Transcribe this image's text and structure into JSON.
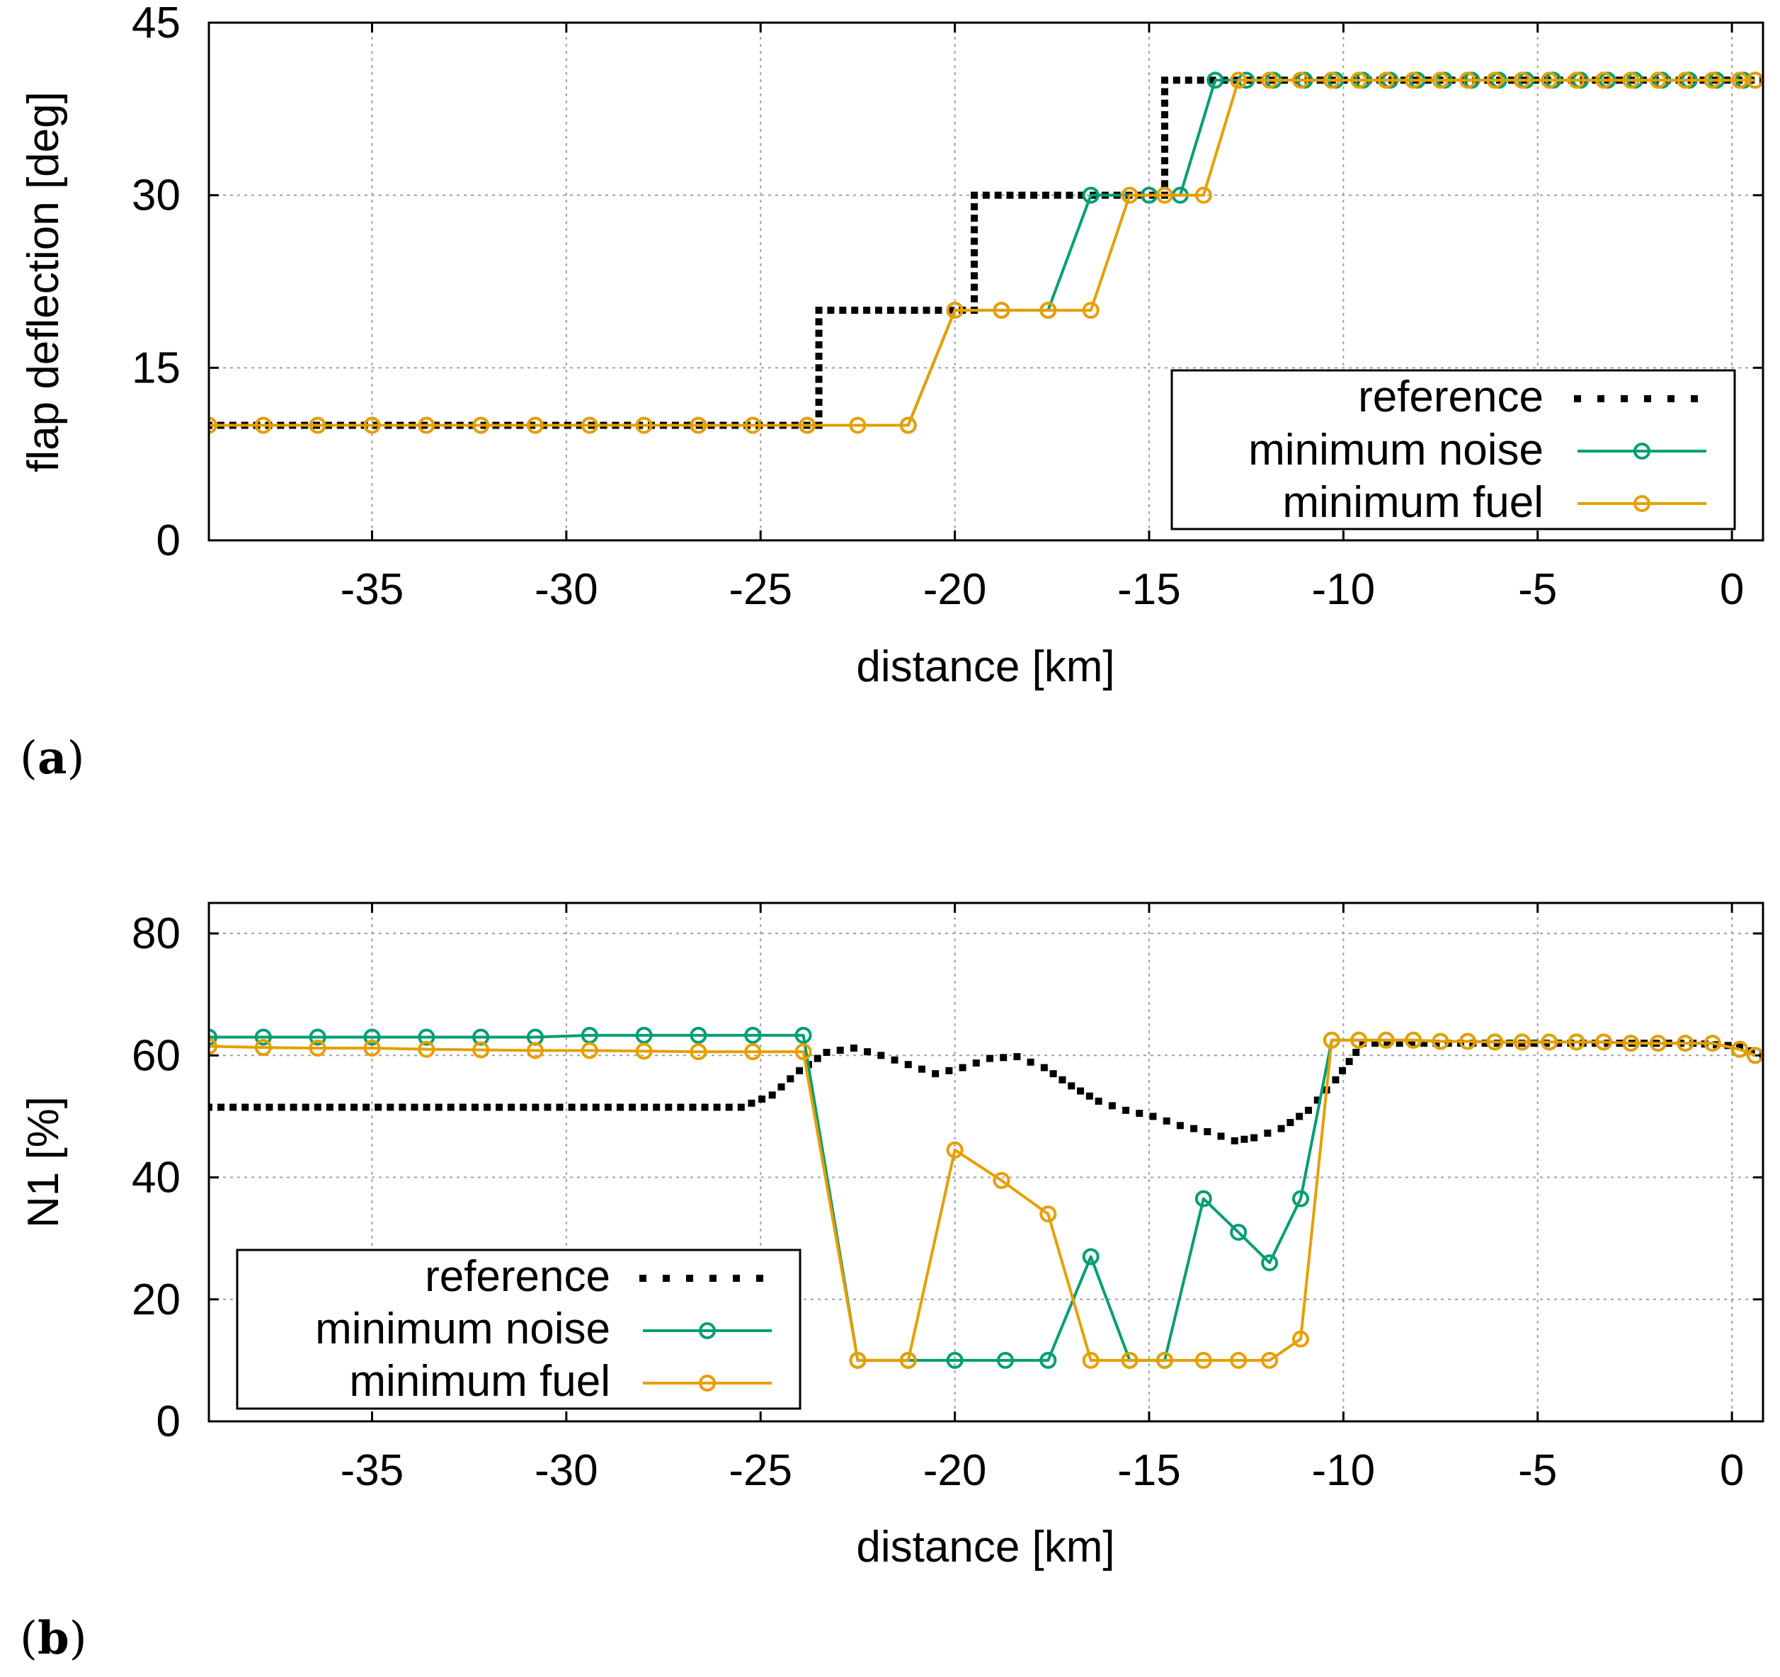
{
  "colors": {
    "reference": "#000000",
    "min_noise": "#009e73",
    "min_fuel": "#e69f00"
  },
  "chart_data": [
    {
      "type": "line",
      "panel_label": "a",
      "title": "",
      "xlabel": "distance [km]",
      "ylabel": "flap deflection [deg]",
      "xlim": [
        -39.2,
        0.8
      ],
      "ylim": [
        0,
        45
      ],
      "xticks": [
        -35,
        -30,
        -25,
        -20,
        -15,
        -10,
        -5,
        0
      ],
      "yticks": [
        0,
        15,
        30,
        45
      ],
      "grid": true,
      "legend_position": "bottom-right",
      "series": [
        {
          "name": "reference",
          "style": "dots",
          "color": "#000000",
          "x": [
            -39.2,
            -23.5,
            -23.5,
            -19.5,
            -19.5,
            -14.6,
            -14.6,
            0.8
          ],
          "y": [
            10,
            10,
            20,
            20,
            30,
            30,
            40,
            40
          ]
        },
        {
          "name": "minimum noise",
          "style": "line-markers",
          "color": "#009e73",
          "x": [
            -39.2,
            -37.8,
            -36.4,
            -35.0,
            -33.6,
            -32.2,
            -30.8,
            -29.4,
            -28.0,
            -26.6,
            -25.2,
            -23.8,
            -21.2,
            -20.0,
            -18.8,
            -17.6,
            -16.5,
            -15.0,
            -14.2,
            -13.3,
            -12.5,
            -11.8,
            -11.0,
            -10.2,
            -9.5,
            -8.8,
            -8.1,
            -7.4,
            -6.7,
            -6.0,
            -5.3,
            -4.6,
            -3.9,
            -3.2,
            -2.5,
            -1.8,
            -1.1,
            -0.4,
            0.3,
            0.6
          ],
          "y": [
            10,
            10,
            10,
            10,
            10,
            10,
            10,
            10,
            10,
            10,
            10,
            10,
            10,
            20,
            20,
            20,
            30,
            30,
            30,
            40,
            40,
            40,
            40,
            40,
            40,
            40,
            40,
            40,
            40,
            40,
            40,
            40,
            40,
            40,
            40,
            40,
            40,
            40,
            40,
            40
          ]
        },
        {
          "name": "minimum fuel",
          "style": "line-markers",
          "color": "#e69f00",
          "x": [
            -39.2,
            -37.8,
            -36.4,
            -35.0,
            -33.6,
            -32.2,
            -30.8,
            -29.4,
            -28.0,
            -26.6,
            -25.2,
            -23.8,
            -22.5,
            -21.2,
            -20.0,
            -18.8,
            -17.6,
            -16.5,
            -15.5,
            -14.6,
            -13.6,
            -12.7,
            -11.9,
            -11.1,
            -10.3,
            -9.6,
            -8.9,
            -8.2,
            -7.5,
            -6.8,
            -6.1,
            -5.4,
            -4.7,
            -4.0,
            -3.3,
            -2.6,
            -1.9,
            -1.2,
            -0.5,
            0.2,
            0.6
          ],
          "y": [
            10,
            10,
            10,
            10,
            10,
            10,
            10,
            10,
            10,
            10,
            10,
            10,
            10,
            10,
            20,
            20,
            20,
            20,
            30,
            30,
            30,
            40,
            40,
            40,
            40,
            40,
            40,
            40,
            40,
            40,
            40,
            40,
            40,
            40,
            40,
            40,
            40,
            40,
            40,
            40,
            40
          ]
        }
      ]
    },
    {
      "type": "line",
      "panel_label": "b",
      "title": "",
      "xlabel": "distance [km]",
      "ylabel": "N1 [%]",
      "xlim": [
        -39.2,
        0.8
      ],
      "ylim": [
        0,
        85
      ],
      "xticks": [
        -35,
        -30,
        -25,
        -20,
        -15,
        -10,
        -5,
        0
      ],
      "yticks": [
        0,
        20,
        40,
        60,
        80
      ],
      "grid": true,
      "legend_position": "bottom-left",
      "series": [
        {
          "name": "reference",
          "style": "dots",
          "color": "#000000",
          "x": [
            -39.2,
            -25.5,
            -24.7,
            -24.0,
            -23.3,
            -22.6,
            -21.9,
            -21.2,
            -20.5,
            -19.8,
            -19.1,
            -18.4,
            -17.7,
            -17.0,
            -16.3,
            -15.6,
            -14.9,
            -14.2,
            -13.5,
            -12.8,
            -12.3,
            -11.6,
            -10.9,
            -10.2,
            -9.5,
            -1.0,
            0.2,
            0.8
          ],
          "y": [
            51.5,
            51.5,
            53.5,
            57.5,
            60.5,
            61.2,
            60.0,
            58.5,
            57.0,
            58.0,
            59.5,
            59.8,
            58.0,
            55.0,
            52.5,
            51.0,
            50.0,
            48.5,
            47.5,
            46.0,
            46.5,
            48.0,
            51.0,
            56.0,
            62.0,
            62.0,
            61.5,
            60.0
          ]
        },
        {
          "name": "minimum noise",
          "style": "line-markers",
          "color": "#009e73",
          "x": [
            -39.2,
            -37.8,
            -36.4,
            -35.0,
            -33.6,
            -32.2,
            -30.8,
            -29.4,
            -28.0,
            -26.6,
            -25.2,
            -23.9,
            -22.5,
            -21.2,
            -20.0,
            -18.7,
            -17.6,
            -16.5,
            -15.5,
            -14.6,
            -13.6,
            -12.7,
            -11.9,
            -11.1,
            -10.3,
            -9.6,
            -8.9,
            -8.2,
            -7.5,
            -6.8,
            -6.1,
            -5.4,
            -4.7,
            -4.0,
            -3.3,
            -2.6,
            -1.9,
            -1.2,
            -0.5,
            0.2,
            0.6
          ],
          "y": [
            63,
            63,
            63,
            63,
            63,
            63,
            63,
            63.3,
            63.3,
            63.3,
            63.3,
            63.3,
            10,
            10,
            10,
            10,
            10,
            27,
            10,
            10,
            36.5,
            31,
            26,
            36.5,
            62.5,
            62.5,
            62.5,
            62.5,
            62.3,
            62.3,
            62.2,
            62.2,
            62.2,
            62.2,
            62.2,
            62,
            62,
            62,
            62,
            61,
            60
          ]
        },
        {
          "name": "minimum fuel",
          "style": "line-markers",
          "color": "#e69f00",
          "x": [
            -39.2,
            -37.8,
            -36.4,
            -35.0,
            -33.6,
            -32.2,
            -30.8,
            -29.4,
            -28.0,
            -26.6,
            -25.2,
            -23.9,
            -22.5,
            -21.2,
            -20.0,
            -18.8,
            -17.6,
            -16.5,
            -15.5,
            -14.6,
            -13.6,
            -12.7,
            -11.9,
            -11.1,
            -10.3,
            -9.6,
            -8.9,
            -8.2,
            -7.5,
            -6.8,
            -6.1,
            -5.4,
            -4.7,
            -4.0,
            -3.3,
            -2.6,
            -1.9,
            -1.2,
            -0.5,
            0.2,
            0.6
          ],
          "y": [
            61.5,
            61.3,
            61.2,
            61.2,
            61.0,
            60.9,
            60.8,
            60.8,
            60.7,
            60.6,
            60.6,
            60.6,
            10,
            10,
            44.5,
            39.5,
            34,
            10,
            10,
            10,
            10,
            10,
            10,
            13.5,
            62.5,
            62.5,
            62.5,
            62.5,
            62.3,
            62.3,
            62.2,
            62.2,
            62.2,
            62.2,
            62.2,
            62,
            62,
            62,
            62,
            61,
            60
          ]
        }
      ]
    }
  ]
}
